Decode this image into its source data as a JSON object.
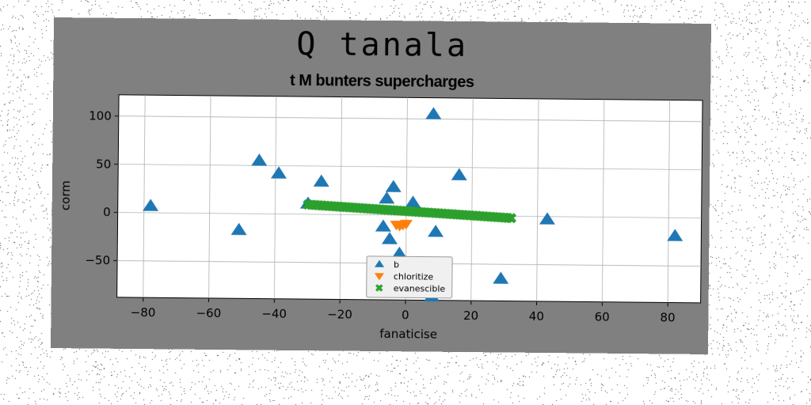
{
  "chart_data": {
    "type": "scatter",
    "title": "Q tanala",
    "subtitle": "t M bunters supercharges",
    "xlabel": "fanaticise",
    "ylabel": "corm",
    "xlim": [
      -88,
      90
    ],
    "ylim": [
      -88,
      122
    ],
    "xticks": [
      -80,
      -60,
      -40,
      -20,
      0,
      20,
      40,
      60,
      80
    ],
    "yticks": [
      -50,
      0,
      50,
      100
    ],
    "xtick_labels": [
      "−80",
      "−60",
      "−40",
      "−20",
      "0",
      "20",
      "40",
      "60",
      "80"
    ],
    "ytick_labels": [
      "−50",
      "0",
      "50",
      "100"
    ],
    "grid": true,
    "legend_position": "lower-center",
    "series": [
      {
        "name": "b",
        "marker": "triangle-up",
        "color": "#1f77b4",
        "points": [
          [
            -78,
            7
          ],
          [
            -51,
            -17
          ],
          [
            -45,
            55
          ],
          [
            -39,
            42
          ],
          [
            -26,
            34
          ],
          [
            -30,
            11
          ],
          [
            8,
            105
          ],
          [
            16,
            42
          ],
          [
            -4,
            29
          ],
          [
            -6,
            17
          ],
          [
            2,
            13
          ],
          [
            -7,
            -12
          ],
          [
            -5,
            -25
          ],
          [
            -2,
            -40
          ],
          [
            9,
            -17
          ],
          [
            29,
            -65
          ],
          [
            8,
            -84
          ],
          [
            43,
            -3
          ],
          [
            82,
            -19
          ]
        ]
      },
      {
        "name": "chloritize",
        "marker": "triangle-down",
        "color": "#ff7f0e",
        "points": [
          [
            -3,
            -10
          ],
          [
            -1,
            -10
          ],
          [
            0,
            -9
          ],
          [
            -2,
            -11
          ]
        ]
      },
      {
        "name": "evanescible",
        "marker": "x",
        "color": "#2ca02c",
        "line_from": [
          -30,
          10
        ],
        "line_to": [
          32,
          -2
        ],
        "count": 60
      }
    ]
  }
}
